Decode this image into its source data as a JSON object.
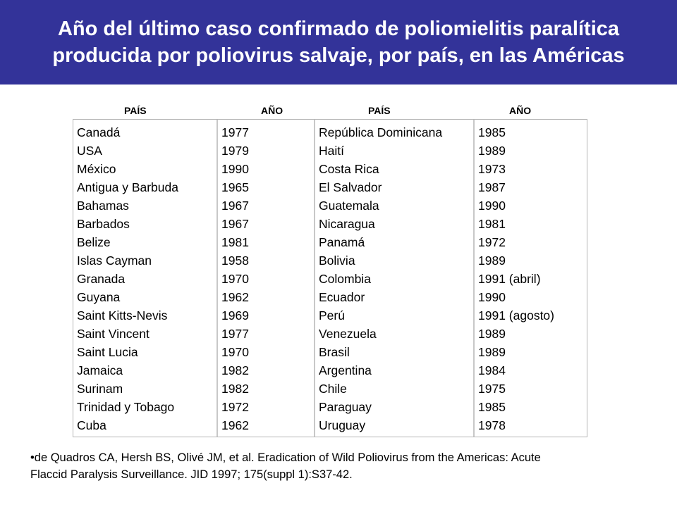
{
  "title": {
    "line1": "Año del último caso confirmado de poliomielitis paralítica",
    "line2": "producida por poliovirus salvaje, por país, en las Américas"
  },
  "headers": [
    "PAÍS",
    "AÑO",
    "PAÍS",
    "AÑO"
  ],
  "left_table": {
    "countries": [
      "Canadá",
      "USA",
      "México",
      "Antigua y Barbuda",
      "Bahamas",
      "Barbados",
      "Belize",
      "Islas Cayman",
      "Granada",
      "Guyana",
      "Saint Kitts-Nevis",
      "Saint Vincent",
      "Saint Lucia",
      "Jamaica",
      "Surinam",
      "Trinidad y Tobago",
      "Cuba"
    ],
    "years": [
      "1977",
      "1979",
      "1990",
      "1965",
      "1967",
      "1967",
      "1981",
      "1958",
      "1970",
      "1962",
      "1969",
      "1977",
      "1970",
      "1982",
      "1982",
      "1972",
      "1962"
    ]
  },
  "right_table": {
    "countries": [
      "República Dominicana",
      "Haití",
      "Costa Rica",
      "El Salvador",
      "Guatemala",
      "Nicaragua",
      "Panamá",
      "Bolivia",
      "Colombia",
      "Ecuador",
      "Perú",
      "Venezuela",
      "Brasil",
      "Argentina",
      "Chile",
      "Paraguay",
      "Uruguay"
    ],
    "years": [
      "1985",
      "1989",
      "1973",
      "1987",
      "1990",
      "1981",
      "1972",
      "1989",
      "1991 (abril)",
      "1990",
      "1991 (agosto)",
      "1989",
      "1989",
      "1984",
      "1975",
      "1985",
      "1978"
    ]
  },
  "footnote": {
    "line1": "•de Quadros CA, Hersh BS, Olivé JM, et al. Eradication of Wild Poliovirus from the Americas: Acute",
    "line2": "Flaccid Paralysis Surveillance. JID 1997; 175(suppl 1):S37-42."
  }
}
